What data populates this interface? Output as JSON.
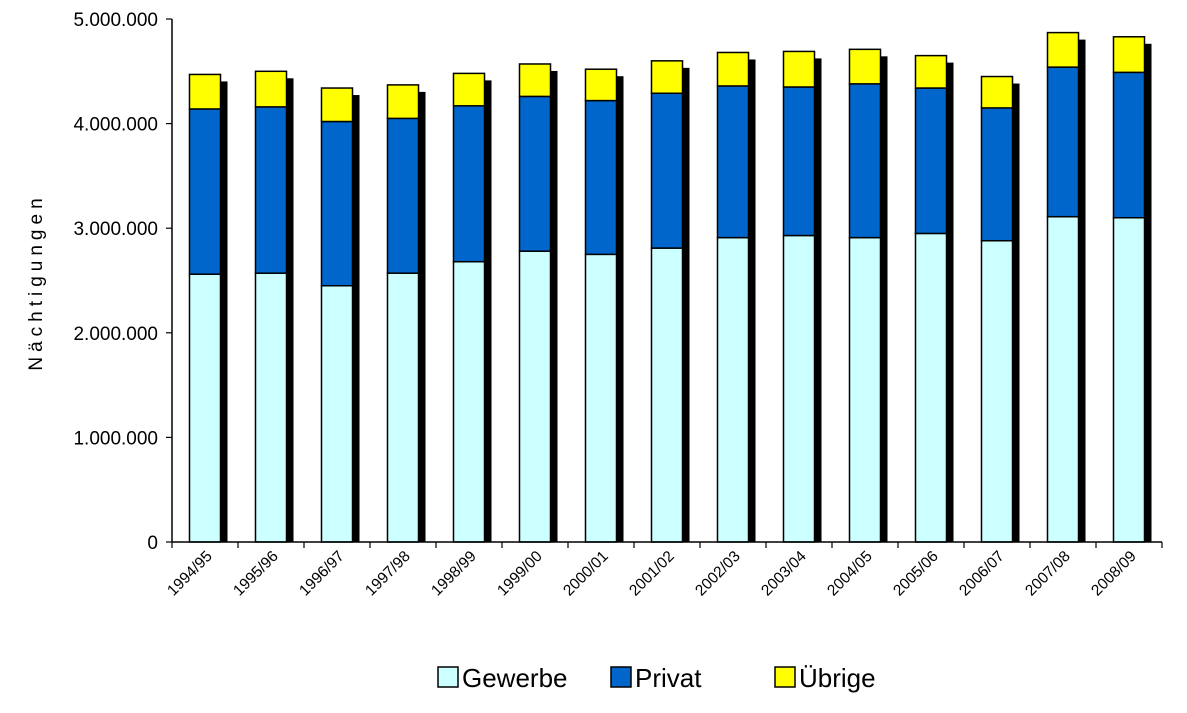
{
  "chart_data": {
    "type": "bar",
    "stacked": true,
    "ylabel": "Nächtigungen",
    "ylim": [
      0,
      5000000
    ],
    "yticks": [
      "0",
      "1.000.000",
      "2.000.000",
      "3.000.000",
      "4.000.000",
      "5.000.000"
    ],
    "yticks_values": [
      0,
      1000000,
      2000000,
      3000000,
      4000000,
      5000000
    ],
    "categories": [
      "1994/95",
      "1995/96",
      "1996/97",
      "1997/98",
      "1998/99",
      "1999/00",
      "2000/01",
      "2001/02",
      "2002/03",
      "2003/04",
      "2004/05",
      "2005/06",
      "2006/07",
      "2007/08",
      "2008/09"
    ],
    "series": [
      {
        "name": "Gewerbe",
        "color": "#ccffff",
        "values": [
          2560000,
          2570000,
          2450000,
          2570000,
          2680000,
          2780000,
          2750000,
          2810000,
          2910000,
          2930000,
          2910000,
          2950000,
          2880000,
          3110000,
          3100000
        ]
      },
      {
        "name": "Privat",
        "color": "#0066cc",
        "values": [
          1580000,
          1590000,
          1570000,
          1480000,
          1490000,
          1480000,
          1470000,
          1480000,
          1450000,
          1420000,
          1470000,
          1390000,
          1270000,
          1430000,
          1390000
        ]
      },
      {
        "name": "Übrige",
        "color": "#ffff00",
        "values": [
          330000,
          340000,
          320000,
          320000,
          310000,
          310000,
          300000,
          310000,
          320000,
          340000,
          330000,
          310000,
          300000,
          330000,
          340000
        ]
      }
    ],
    "legend_position": "bottom",
    "grid": false
  }
}
